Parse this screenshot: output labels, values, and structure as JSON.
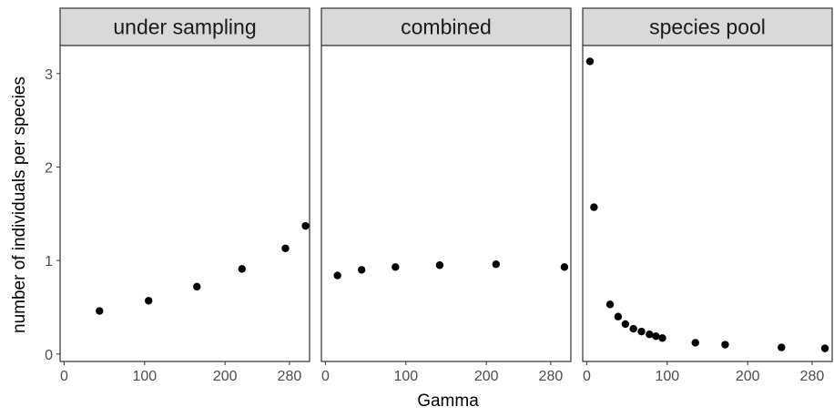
{
  "chart_data": {
    "type": "scatter",
    "xlabel": "Gamma",
    "ylabel": "number of individuals per species",
    "ylim": [
      -0.08,
      3.3
    ],
    "y_ticks": [
      0,
      1,
      2,
      3
    ],
    "x_ticks": [
      0,
      100,
      200,
      280
    ],
    "grid": false,
    "colors": {
      "point": "#000000",
      "strip_fill": "#d9d9d9",
      "panel_border": "#333333",
      "tick_label": "#4d4d4d"
    },
    "panels": [
      {
        "strip_label": "under sampling",
        "xlim": [
          -5,
          305
        ],
        "x": [
          44,
          105,
          165,
          221,
          275,
          300
        ],
        "y": [
          0.46,
          0.57,
          0.72,
          0.91,
          1.13,
          1.37
        ]
      },
      {
        "strip_label": "combined",
        "xlim": [
          -5,
          305
        ],
        "x": [
          15,
          45,
          87,
          142,
          212,
          297
        ],
        "y": [
          0.84,
          0.9,
          0.93,
          0.95,
          0.96,
          0.93
        ]
      },
      {
        "strip_label": "species pool",
        "xlim": [
          -5,
          305
        ],
        "x": [
          4,
          9,
          29,
          39,
          48,
          58,
          68,
          78,
          86,
          94,
          135,
          172,
          242,
          296
        ],
        "y": [
          3.13,
          1.57,
          0.53,
          0.4,
          0.32,
          0.27,
          0.24,
          0.21,
          0.19,
          0.17,
          0.12,
          0.1,
          0.07,
          0.06
        ]
      }
    ]
  }
}
